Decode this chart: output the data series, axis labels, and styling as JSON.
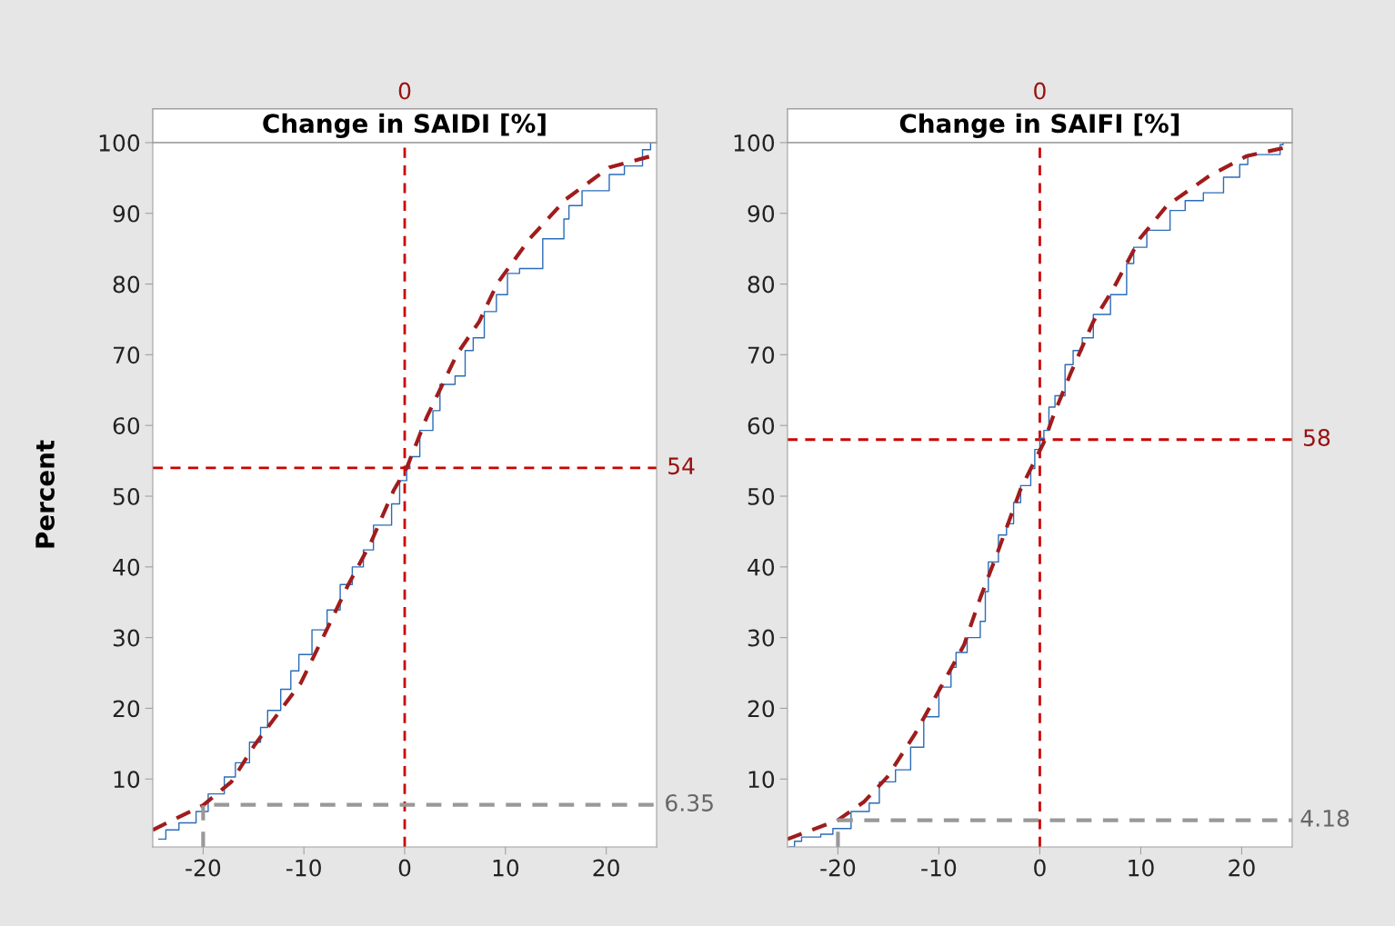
{
  "chart_data": [
    {
      "type": "step",
      "title": "Change in SAIDI [%]",
      "ylabel": "Percent",
      "xlim": [
        -25,
        25
      ],
      "ylim": [
        0.4,
        100
      ],
      "xticks": [
        -20,
        -10,
        0,
        10,
        20
      ],
      "yticks": [
        10,
        20,
        30,
        40,
        50,
        60,
        70,
        80,
        90,
        100
      ],
      "grid": false,
      "legend": false,
      "series": [
        {
          "color": "#2b6cb8",
          "line_style": "solid",
          "x": [
            -24.4,
            -23.7,
            -22.4,
            -20.7,
            -19.5,
            -17.9,
            -16.8,
            -15.4,
            -14.3,
            -13.6,
            -12.3,
            -11.3,
            -10.5,
            -9.2,
            -7.7,
            -6.4,
            -5.2,
            -4.1,
            -3.1,
            -1.3,
            -0.5,
            0.2,
            0.5,
            1.5,
            2.8,
            3.5,
            5.0,
            6.0,
            6.8,
            7.9,
            9.1,
            10.2,
            11.4,
            13.7,
            15.8,
            16.3,
            17.6,
            20.3,
            21.8,
            23.6,
            24.4,
            25
          ],
          "values": [
            1.5,
            2.8,
            3.8,
            5.4,
            7.9,
            10.3,
            12.3,
            15.2,
            17.3,
            19.7,
            22.7,
            25.3,
            27.6,
            31.1,
            33.9,
            37.5,
            40.0,
            42.4,
            45.9,
            48.9,
            52.2,
            54.0,
            55.6,
            59.3,
            62.1,
            65.8,
            67.0,
            70.6,
            72.4,
            76.1,
            78.5,
            81.5,
            82.2,
            86.4,
            89.2,
            91.1,
            93.2,
            95.5,
            96.7,
            99.0,
            100,
            100
          ]
        },
        {
          "type": "line",
          "color": "#a01c1c",
          "line_style": "dashed",
          "x": [
            -25,
            -20,
            -17.2,
            -14.9,
            -10.3,
            -7.4,
            -5.7,
            -3.4,
            -1.1,
            0.2,
            2.2,
            5.2,
            7.4,
            9.2,
            12.4,
            16.0,
            20.3,
            25
          ],
          "values": [
            2.8,
            6.3,
            9.6,
            14.8,
            23.6,
            32.1,
            37.2,
            43.3,
            50.8,
            54.0,
            61.2,
            70.1,
            74.7,
            80.1,
            86.4,
            92.0,
            96.5,
            98.3
          ]
        },
        {
          "type": "line",
          "color": "#999999",
          "line_style": "dashed",
          "x": [
            -20,
            -20,
            25
          ],
          "values": [
            0.4,
            6.35,
            6.35
          ]
        }
      ],
      "ref_lines": [
        {
          "axis": "x",
          "value": 0,
          "label": "0",
          "color": "#cc0000",
          "line_style": "dashed"
        },
        {
          "axis": "y",
          "value": 54,
          "label": "54",
          "color": "#cc0000",
          "line_style": "dashed"
        }
      ],
      "annotations": [
        {
          "text": "6.35",
          "x": 25,
          "y": 6.35
        }
      ]
    },
    {
      "type": "step",
      "title": "Change in SAIFI [%]",
      "xlim": [
        -25,
        25
      ],
      "ylim": [
        0.4,
        100
      ],
      "xticks": [
        -20,
        -10,
        0,
        10,
        20
      ],
      "yticks": [
        10,
        20,
        30,
        40,
        50,
        60,
        70,
        80,
        90,
        100
      ],
      "grid": false,
      "legend": false,
      "series": [
        {
          "color": "#2b6cb8",
          "line_style": "solid",
          "x": [
            -24.8,
            -24.3,
            -23.6,
            -21.7,
            -20.5,
            -18.7,
            -16.9,
            -15.9,
            -14.3,
            -12.8,
            -11.5,
            -10.0,
            -8.8,
            -8.3,
            -7.2,
            -5.9,
            -5.4,
            -5.1,
            -4.1,
            -3.3,
            -2.6,
            -1.9,
            -0.9,
            -0.5,
            0,
            0.4,
            0.9,
            1.5,
            2.5,
            3.3,
            4.2,
            5.3,
            7.0,
            8.6,
            9.3,
            10.6,
            12.9,
            14.4,
            16.2,
            18.2,
            19.8,
            20.6,
            23.8,
            24.1,
            25
          ],
          "values": [
            0.4,
            1.2,
            1.8,
            2.2,
            3.0,
            5.4,
            6.6,
            9.6,
            11.3,
            14.5,
            18.8,
            23.0,
            25.8,
            27.9,
            30.0,
            32.3,
            36.5,
            40.7,
            44.5,
            46.1,
            49.1,
            51.5,
            53.9,
            56.6,
            58.2,
            59.3,
            62.6,
            64.2,
            68.6,
            70.6,
            72.4,
            75.7,
            78.5,
            82.9,
            85.2,
            87.6,
            90.4,
            91.8,
            92.9,
            95.1,
            96.9,
            98.3,
            99.7,
            100,
            100
          ]
        },
        {
          "type": "line",
          "color": "#a01c1c",
          "line_style": "dashed",
          "x": [
            -25,
            -20,
            -17.4,
            -15.1,
            -12.4,
            -9.8,
            -7.5,
            -5.9,
            -4.3,
            -1.9,
            0.4,
            1.4,
            3.0,
            5.3,
            7.3,
            9.9,
            12.6,
            16.8,
            20.5,
            25
          ],
          "values": [
            1.5,
            4.2,
            6.8,
            10.3,
            16.3,
            23.0,
            29.0,
            35.6,
            41.6,
            51.0,
            57.6,
            61.6,
            67.2,
            74.7,
            79.4,
            86.4,
            91.1,
            95.3,
            98.1,
            99.5
          ]
        },
        {
          "type": "line",
          "color": "#999999",
          "line_style": "dashed",
          "x": [
            -20,
            -20,
            25
          ],
          "values": [
            0.4,
            4.18,
            4.18
          ]
        }
      ],
      "ref_lines": [
        {
          "axis": "x",
          "value": 0,
          "label": "0",
          "color": "#cc0000",
          "line_style": "dashed"
        },
        {
          "axis": "y",
          "value": 58,
          "label": "58",
          "color": "#cc0000",
          "line_style": "dashed"
        }
      ],
      "annotations": [
        {
          "text": "4.18",
          "x": 25,
          "y": 4.18
        }
      ]
    }
  ]
}
